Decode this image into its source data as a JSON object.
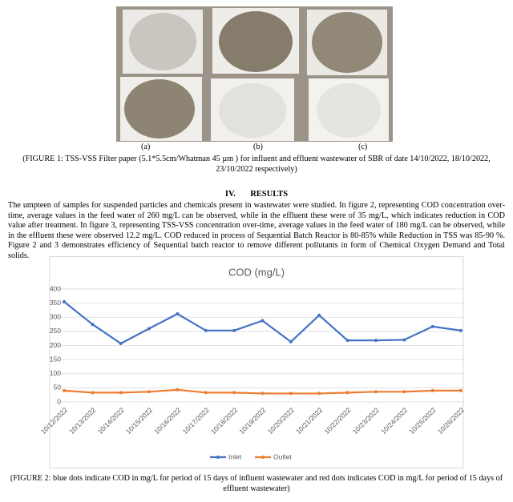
{
  "figure_1": {
    "labels": [
      "(a)",
      "(b)",
      "(c)"
    ],
    "caption": "(FIGURE 1: TSS-VSS Filter paper (5.1*5.5cm/Whatman 45 µm ) for influent and effluent wastewater of SBR of date 14/10/2022, 18/10/2022, 23/10/2022 respectively)"
  },
  "section": {
    "number": "IV.",
    "title": "RESULTS"
  },
  "paragraph": "The umpteen of samples for suspended particles and chemicals present in wastewater were studied. In figure 2, representing COD concentration over-time, average values in the feed water of 260 mg/L can be observed, while in the effluent these were of 35 mg/L, which indicates reduction in COD value after treatment. In figure 3, representing TSS-VSS concentration over-time, average values in the feed water of 180 mg/L can be observed, while in the effluent these were observed 12.2 mg/L. COD reduced in process of Sequential Batch Reactor is 80-85% while Reduction in TSS was 85-90 %. Figure 2 and 3 demonstrates efficiency of Sequential batch reactor to remove different pollutants in form of Chemical Oxygen Demand and Total solids.",
  "chart_data": {
    "type": "line",
    "title": "COD (mg/L)",
    "categories": [
      "10/12/2022",
      "10/13/2022",
      "10/14/2022",
      "10/15/2022",
      "10/16/2022",
      "10/17/2022",
      "10/18/2022",
      "10/19/2022",
      "10/20/2022",
      "10/21/2022",
      "10/22/2022",
      "10/23/2022",
      "10/24/2022",
      "10/25/2022",
      "10/26/2022"
    ],
    "series": [
      {
        "name": "Inlet",
        "color": "#4472c4",
        "values": [
          355,
          275,
          207,
          260,
          312,
          253,
          253,
          288,
          213,
          307,
          218,
          218,
          220,
          267,
          253
        ]
      },
      {
        "name": "Outlet",
        "color": "#ed7d31",
        "values": [
          40,
          33,
          33,
          36,
          43,
          33,
          33,
          30,
          30,
          30,
          33,
          36,
          36,
          40,
          40
        ]
      }
    ],
    "ylim": [
      0,
      400
    ],
    "yticks": [
      0,
      50,
      100,
      150,
      200,
      250,
      300,
      350,
      400
    ],
    "grid": true,
    "legend": "bottom"
  },
  "figure_2": {
    "caption": "(FIGURE 2:  blue dots indicate COD in mg/L for period of 15 days of influent wastewater and red dots indicates COD in mg/L for period of 15 days of effluent wastewater)"
  }
}
